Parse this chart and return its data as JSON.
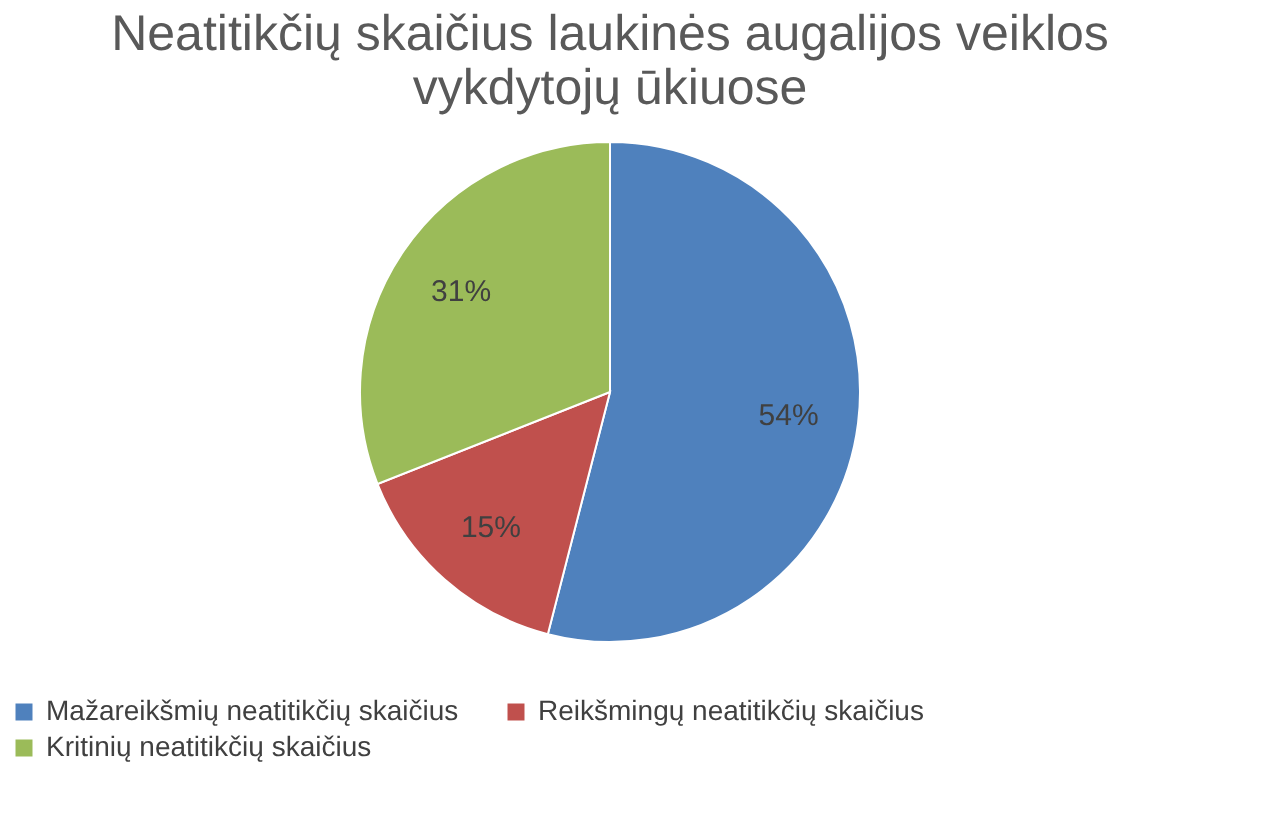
{
  "chart_data": {
    "type": "pie",
    "title": [
      "Neatitikčių skaičius laukinės augalijos veiklos",
      "vykdytojų ūkiuose"
    ],
    "categories": [
      "Mažareikšmių neatitikčių skaičius",
      "Reikšmingų neatitikčių skaičius",
      "Kritinių neatitikčių skaičius"
    ],
    "values": [
      54,
      15,
      31
    ],
    "colors": [
      "#4f81bd",
      "#c0504d",
      "#9bbb59"
    ],
    "value_labels": [
      "54%",
      "15%",
      "31%"
    ],
    "legend": "bottom"
  }
}
